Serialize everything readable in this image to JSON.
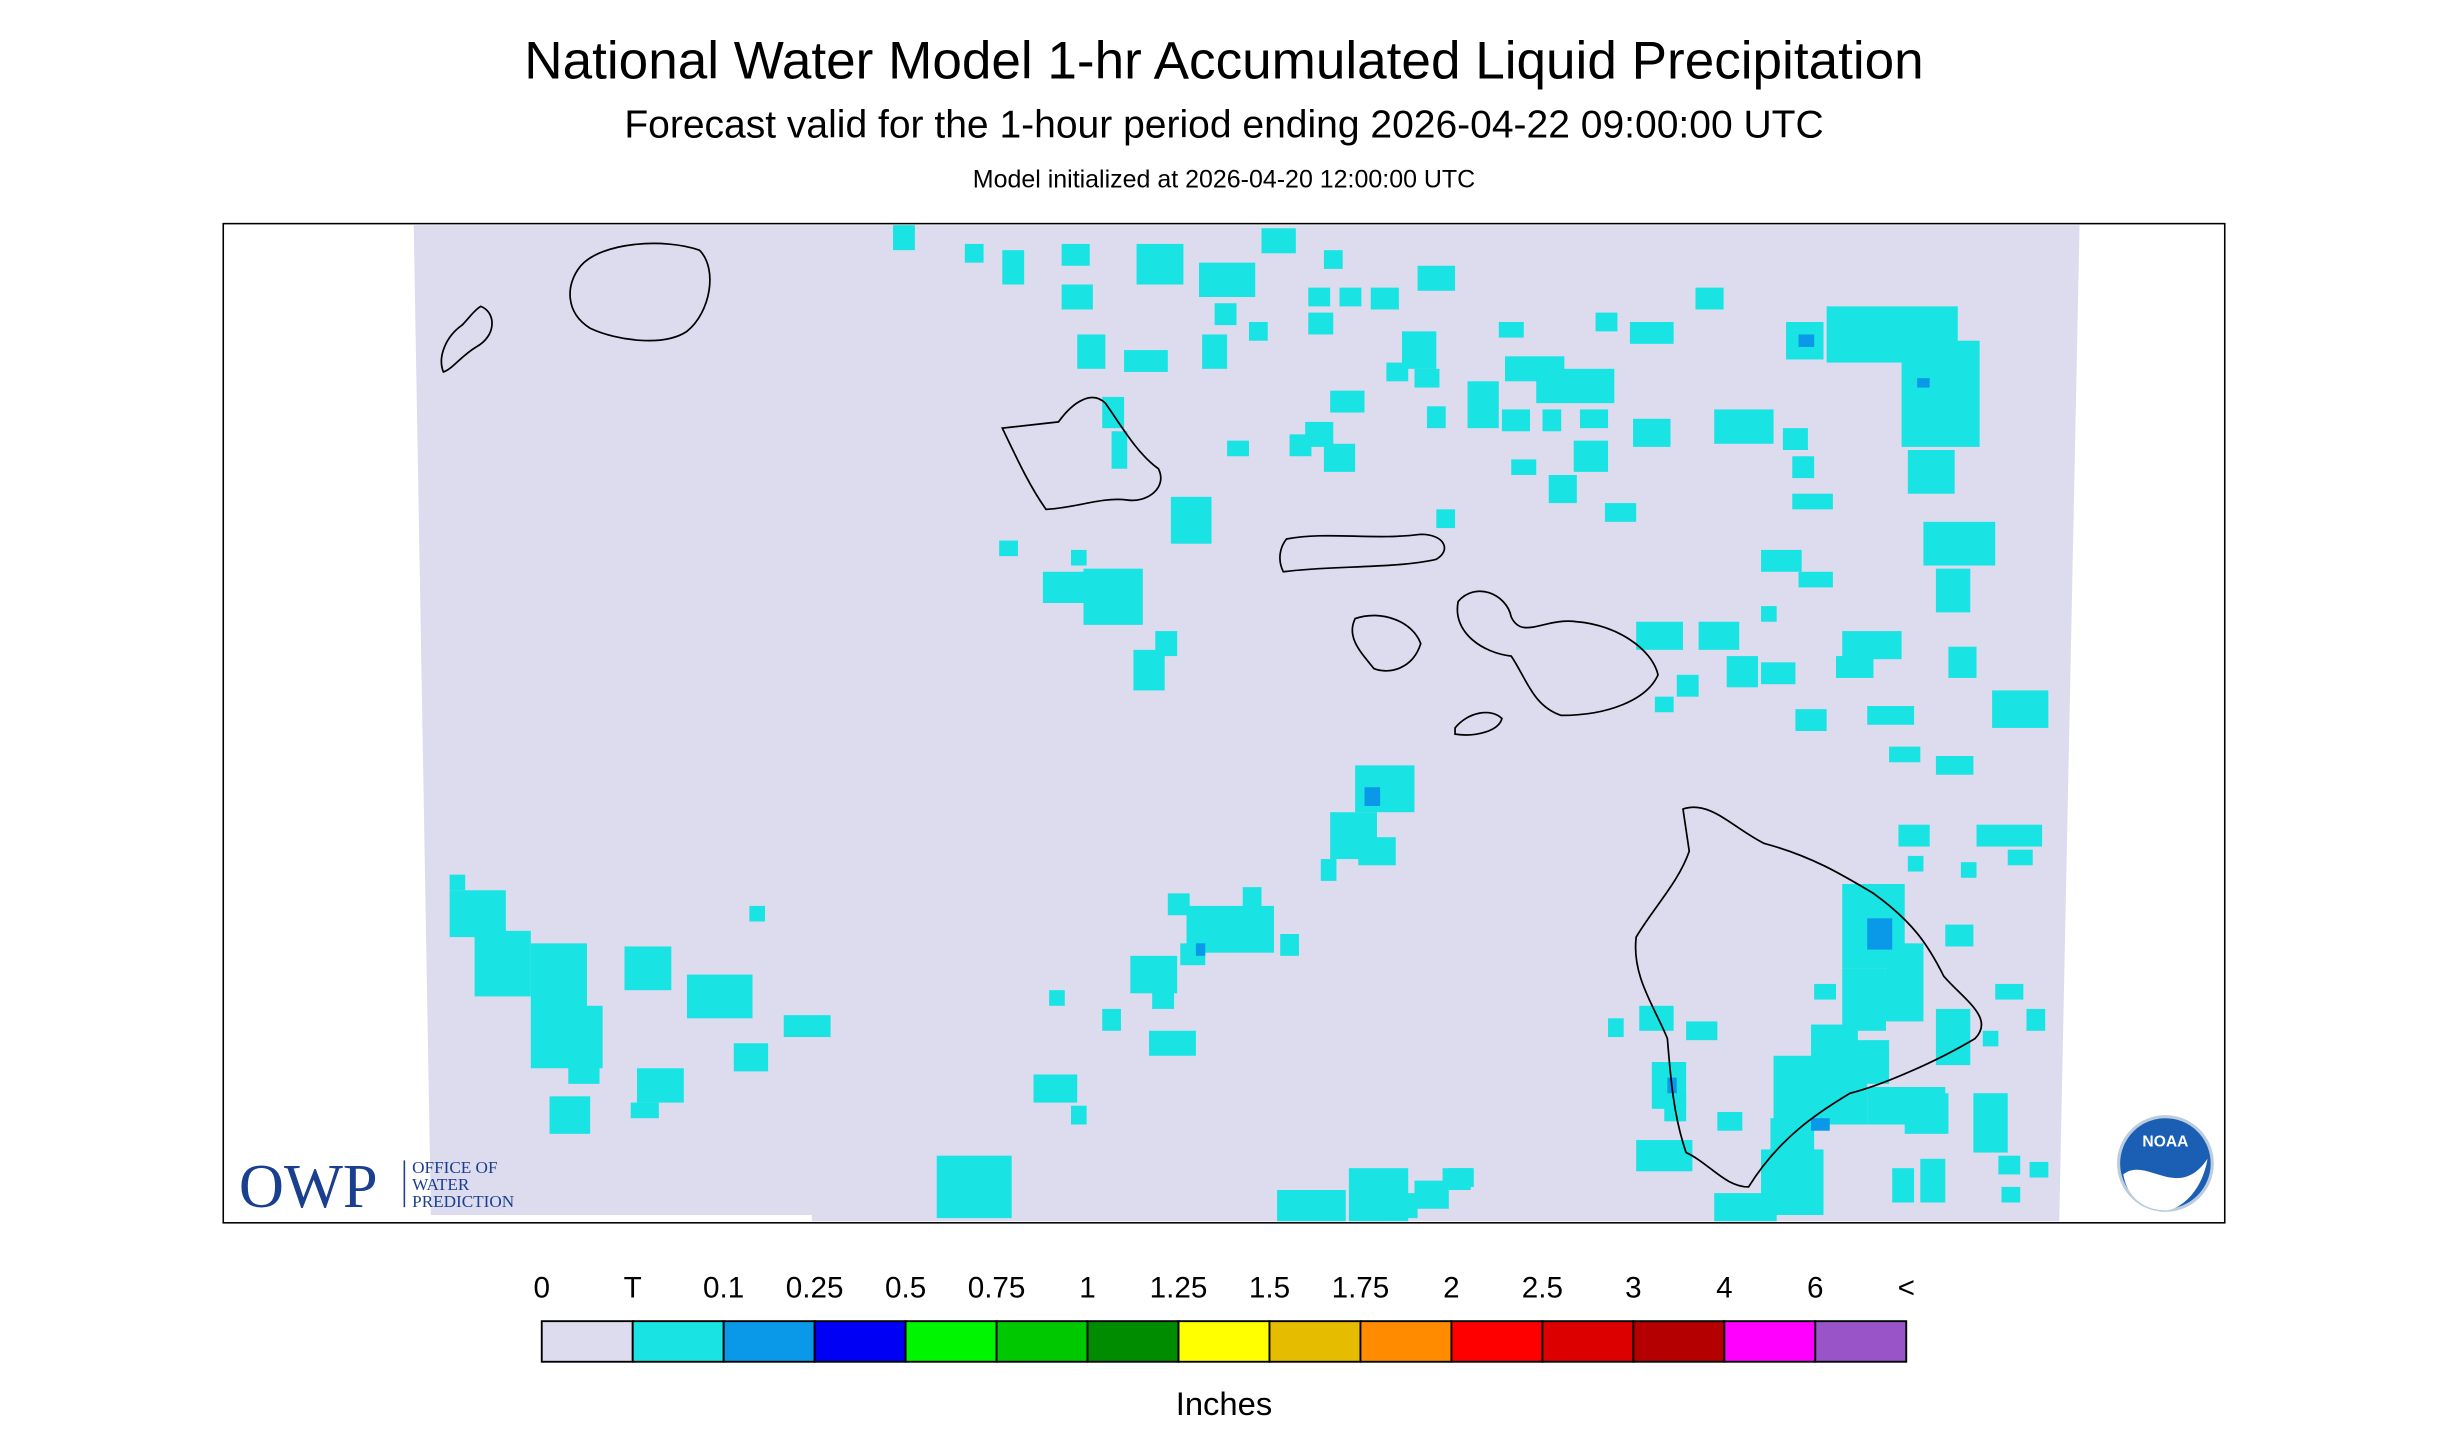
{
  "header": {
    "title": "National Water Model 1-hr Accumulated Liquid Precipitation",
    "subtitle": "Forecast valid for the 1-hour period ending 2026-04-22 09:00:00 UTC",
    "initialized": "Model initialized at 2026-04-20 12:00:00 UTC"
  },
  "map": {
    "background": "#dcdcee",
    "precip_color": "#19e3e3",
    "heavier_color": "#0a98e8"
  },
  "legend": {
    "labels": [
      "0",
      "T",
      "0.1",
      "0.25",
      "0.5",
      "0.75",
      "1",
      "1.25",
      "1.5",
      "1.75",
      "2",
      "2.5",
      "3",
      "4",
      "6",
      "<"
    ],
    "colors": [
      "#dcdcee",
      "#19e3e3",
      "#0a98e8",
      "#0000f5",
      "#00f500",
      "#00c800",
      "#008c00",
      "#ffff00",
      "#e6bc00",
      "#ff8c00",
      "#ff0000",
      "#dc0000",
      "#b40000",
      "#ff00ff",
      "#9954c8"
    ],
    "unit": "Inches"
  },
  "logo": {
    "text": "OWP",
    "lines": [
      "OFFICE OF",
      "WATER",
      "PREDICTION"
    ]
  },
  "noaa": {
    "text": "NOAA"
  }
}
